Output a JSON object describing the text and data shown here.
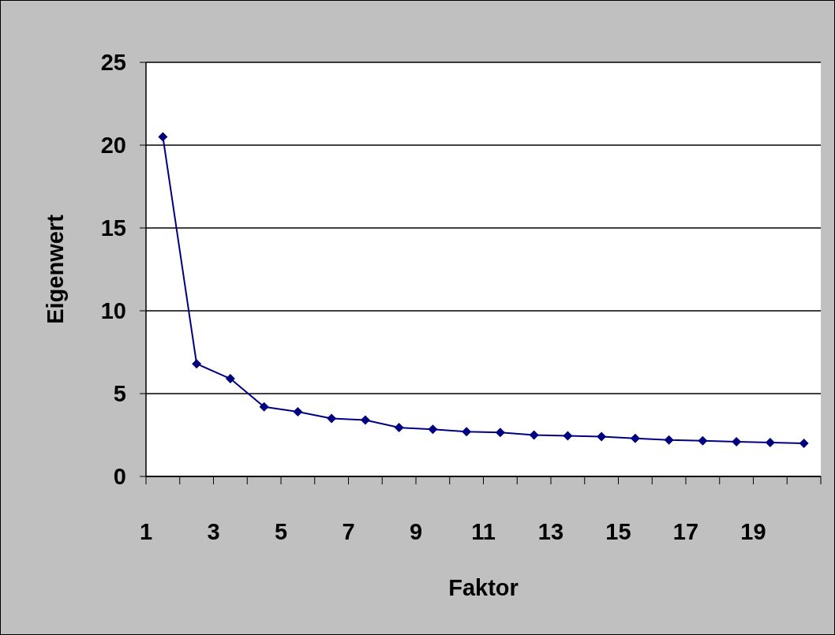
{
  "chart_data": {
    "type": "line",
    "xlabel": "Faktor",
    "ylabel": "Eigenwert",
    "x": [
      1.5,
      2.5,
      3.5,
      4.5,
      5.5,
      6.5,
      7.5,
      8.5,
      9.5,
      10.5,
      11.5,
      12.5,
      13.5,
      14.5,
      15.5,
      16.5,
      17.5,
      18.5,
      19.5,
      20.5
    ],
    "xlim": [
      1,
      21
    ],
    "xticks": [
      1,
      {
        "value": 2,
        "label": null
      },
      3,
      {
        "value": 4,
        "label": null
      },
      5,
      {
        "value": 6,
        "label": null
      },
      7,
      {
        "value": 8,
        "label": null
      },
      9,
      {
        "value": 10,
        "label": null
      },
      11,
      {
        "value": 12,
        "label": null
      },
      13,
      {
        "value": 14,
        "label": null
      },
      15,
      {
        "value": 16,
        "label": null
      },
      17,
      {
        "value": 18,
        "label": null
      },
      19,
      {
        "value": 20,
        "label": null
      },
      {
        "value": 21,
        "label": null
      }
    ],
    "series": [
      {
        "color": "#000080",
        "values": [
          20.5,
          6.8,
          5.9,
          4.2,
          3.9,
          3.5,
          3.4,
          2.95,
          2.85,
          2.7,
          2.65,
          2.5,
          2.45,
          2.4,
          2.3,
          2.2,
          2.15,
          2.1,
          2.05,
          2.0
        ]
      }
    ],
    "ylim": [
      0,
      25
    ],
    "yticks": [
      0,
      5,
      10,
      15,
      20,
      25
    ],
    "grid": "y",
    "marker": "diamond",
    "line_style": "solid"
  }
}
